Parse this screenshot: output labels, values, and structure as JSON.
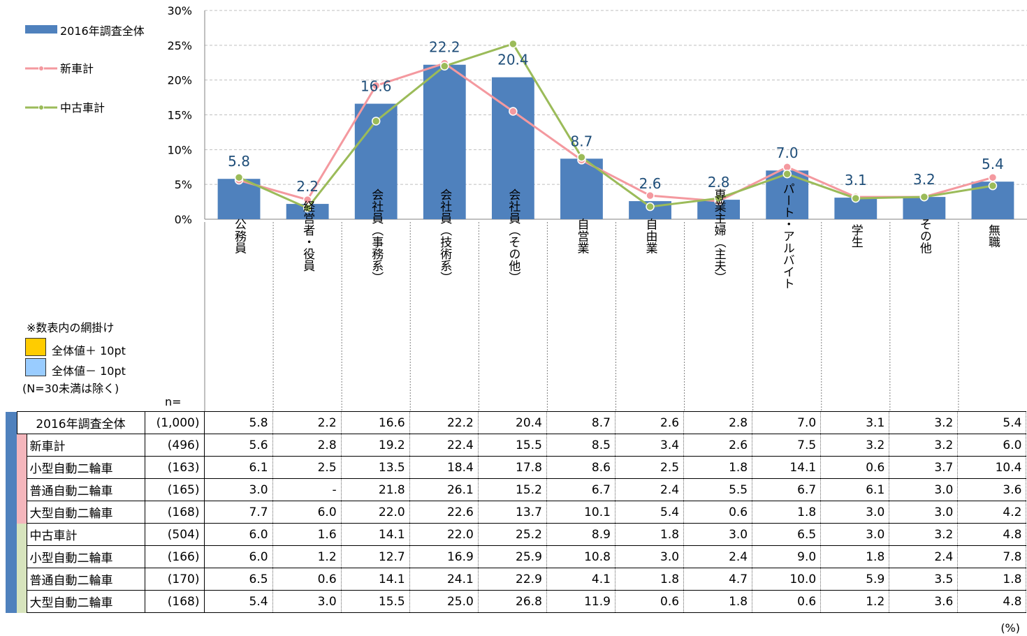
{
  "chart_data": {
    "type": "bar",
    "categories": [
      "公務員",
      "経営者・役員",
      "会社員（事務系）",
      "会社員（技術系）",
      "会社員（その他）",
      "自営業",
      "自由業",
      "専業主婦（主夫）",
      "パート・アルバイト",
      "学生",
      "その他",
      "無職"
    ],
    "ylim": [
      0,
      30
    ],
    "yticks": [
      "0%",
      "5%",
      "10%",
      "15%",
      "20%",
      "25%",
      "30%"
    ],
    "series": [
      {
        "name": "2016年調査全体",
        "type": "bar",
        "color": "#4f81bd",
        "values": [
          5.8,
          2.2,
          16.6,
          22.2,
          20.4,
          8.7,
          2.6,
          2.8,
          7.0,
          3.1,
          3.2,
          5.4
        ],
        "labels": [
          "5.8",
          "2.2",
          "16.6",
          "22.2",
          "20.4",
          "8.7",
          "2.6",
          "2.8",
          "7.0",
          "3.1",
          "3.2",
          "5.4"
        ]
      },
      {
        "name": "新車計",
        "type": "line",
        "color": "#f4999f",
        "values": [
          5.6,
          2.8,
          19.2,
          22.4,
          15.5,
          8.5,
          3.4,
          2.6,
          7.5,
          3.2,
          3.2,
          6.0
        ]
      },
      {
        "name": "中古車計",
        "type": "line",
        "color": "#9bbb59",
        "values": [
          6.0,
          1.6,
          14.1,
          22.0,
          25.2,
          8.9,
          1.8,
          3.0,
          6.5,
          3.0,
          3.2,
          4.8
        ]
      }
    ],
    "legend_position": "top-left"
  },
  "legend": {
    "overall": "2016年調査全体",
    "new": "新車計",
    "used": "中古車計"
  },
  "shading_note": {
    "title": "※数表内の網掛け",
    "plus": "全体値＋ 10pt",
    "minus": "全体値－ 10pt",
    "exclusion": "(N=30未満は除く)",
    "plus_color": "#ffcc00",
    "minus_color": "#99ccff"
  },
  "n_label": "n=",
  "unit": "(%)",
  "table": {
    "rows": [
      {
        "label": "2016年調査全体",
        "n": "(1,000)",
        "values": [
          "5.8",
          "2.2",
          "16.6",
          "22.2",
          "20.4",
          "8.7",
          "2.6",
          "2.8",
          "7.0",
          "3.1",
          "3.2",
          "5.4"
        ]
      },
      {
        "label": "新車計",
        "n": "(496)",
        "values": [
          "5.6",
          "2.8",
          "19.2",
          "22.4",
          "15.5",
          "8.5",
          "3.4",
          "2.6",
          "7.5",
          "3.2",
          "3.2",
          "6.0"
        ]
      },
      {
        "label": "小型自動二輪車",
        "n": "(163)",
        "values": [
          "6.1",
          "2.5",
          "13.5",
          "18.4",
          "17.8",
          "8.6",
          "2.5",
          "1.8",
          "14.1",
          "0.6",
          "3.7",
          "10.4"
        ]
      },
      {
        "label": "普通自動二輪車",
        "n": "(165)",
        "values": [
          "3.0",
          "-",
          "21.8",
          "26.1",
          "15.2",
          "6.7",
          "2.4",
          "5.5",
          "6.7",
          "6.1",
          "3.0",
          "3.6"
        ]
      },
      {
        "label": "大型自動二輪車",
        "n": "(168)",
        "values": [
          "7.7",
          "6.0",
          "22.0",
          "22.6",
          "13.7",
          "10.1",
          "5.4",
          "0.6",
          "1.8",
          "3.0",
          "3.0",
          "4.2"
        ]
      },
      {
        "label": "中古車計",
        "n": "(504)",
        "values": [
          "6.0",
          "1.6",
          "14.1",
          "22.0",
          "25.2",
          "8.9",
          "1.8",
          "3.0",
          "6.5",
          "3.0",
          "3.2",
          "4.8"
        ]
      },
      {
        "label": "小型自動二輪車",
        "n": "(166)",
        "values": [
          "6.0",
          "1.2",
          "12.7",
          "16.9",
          "25.9",
          "10.8",
          "3.0",
          "2.4",
          "9.0",
          "1.8",
          "2.4",
          "7.8"
        ]
      },
      {
        "label": "普通自動二輪車",
        "n": "(170)",
        "values": [
          "6.5",
          "0.6",
          "14.1",
          "24.1",
          "22.9",
          "4.1",
          "1.8",
          "4.7",
          "10.0",
          "5.9",
          "3.5",
          "1.8"
        ]
      },
      {
        "label": "大型自動二輪車",
        "n": "(168)",
        "values": [
          "5.4",
          "3.0",
          "15.5",
          "25.0",
          "26.8",
          "11.9",
          "0.6",
          "1.8",
          "0.6",
          "1.2",
          "3.6",
          "4.8"
        ]
      }
    ],
    "group_colors": {
      "overall": "#4f81bd",
      "new": "#f4b6bc",
      "used": "#d7e4bd"
    }
  }
}
